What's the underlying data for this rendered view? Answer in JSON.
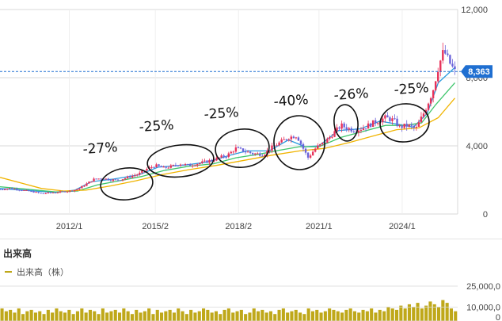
{
  "colors": {
    "up_candle": "#e8325a",
    "down_candle": "#6b63d9",
    "ma_short": "#2a9ce0",
    "ma_mid": "#3ec56b",
    "ma_long": "#f0b400",
    "current_price_bg": "#1f6fd1",
    "current_line": "#1f6fd1",
    "gridline": "#d9d9d9",
    "volume_bar": "#bfa81a",
    "annotation_ink": "#111111"
  },
  "chart_data": [
    {
      "type": "line",
      "name": "price",
      "x_ticks": [
        "2012/1",
        "2015/2",
        "2018/2",
        "2021/1",
        "2024/1"
      ],
      "x_tick_years": [
        2012.0,
        2015.1,
        2018.1,
        2021.0,
        2024.0
      ],
      "xlim": [
        2009.5,
        2026.0
      ],
      "y_ticks": [
        "0",
        "4,000",
        "8,000",
        "12,000"
      ],
      "y_tick_values": [
        0,
        4000,
        8000,
        12000
      ],
      "ylim": [
        0,
        12000
      ],
      "current_price": 8363,
      "current_price_label": "8,363",
      "series": [
        {
          "name": "",
          "style": "candlestick",
          "points": [
            [
              2009.5,
              1450
            ],
            [
              2009.9,
              1520
            ],
            [
              2010.3,
              1400
            ],
            [
              2010.7,
              1300
            ],
            [
              2011.0,
              1200
            ],
            [
              2011.3,
              1250
            ],
            [
              2011.7,
              1300
            ],
            [
              2012.0,
              1350
            ],
            [
              2012.3,
              1450
            ],
            [
              2012.6,
              1750
            ],
            [
              2012.9,
              2050
            ],
            [
              2013.2,
              2100
            ],
            [
              2013.5,
              2000
            ],
            [
              2013.8,
              2000
            ],
            [
              2014.1,
              2150
            ],
            [
              2014.5,
              2350
            ],
            [
              2014.8,
              2650
            ],
            [
              2015.1,
              2850
            ],
            [
              2015.4,
              2700
            ],
            [
              2015.7,
              2800
            ],
            [
              2016.0,
              2950
            ],
            [
              2016.3,
              2850
            ],
            [
              2016.6,
              2950
            ],
            [
              2017.0,
              3100
            ],
            [
              2017.3,
              3250
            ],
            [
              2017.7,
              3450
            ],
            [
              2018.0,
              3850
            ],
            [
              2018.3,
              3700
            ],
            [
              2018.6,
              3550
            ],
            [
              2019.0,
              3500
            ],
            [
              2019.3,
              3900
            ],
            [
              2019.6,
              4200
            ],
            [
              2019.9,
              4500
            ],
            [
              2020.2,
              4600
            ],
            [
              2020.4,
              3950
            ],
            [
              2020.6,
              3300
            ],
            [
              2020.9,
              3900
            ],
            [
              2021.2,
              4200
            ],
            [
              2021.5,
              4700
            ],
            [
              2021.8,
              5200
            ],
            [
              2022.0,
              5050
            ],
            [
              2022.3,
              4900
            ],
            [
              2022.6,
              5050
            ],
            [
              2022.9,
              5300
            ],
            [
              2023.1,
              5450
            ],
            [
              2023.4,
              5650
            ],
            [
              2023.7,
              5500
            ],
            [
              2023.9,
              5100
            ],
            [
              2024.2,
              5200
            ],
            [
              2024.5,
              5000
            ],
            [
              2024.8,
              6000
            ],
            [
              2025.1,
              7200
            ],
            [
              2025.3,
              8600
            ],
            [
              2025.5,
              9600
            ],
            [
              2025.7,
              8900
            ],
            [
              2025.9,
              8363
            ]
          ]
        },
        {
          "name": "",
          "style": "ma-short",
          "points": [
            [
              2009.5,
              1500
            ],
            [
              2010.5,
              1380
            ],
            [
              2011.5,
              1260
            ],
            [
              2012.2,
              1400
            ],
            [
              2012.8,
              1900
            ],
            [
              2013.6,
              2050
            ],
            [
              2014.5,
              2300
            ],
            [
              2015.2,
              2750
            ],
            [
              2016.2,
              2880
            ],
            [
              2017.0,
              3050
            ],
            [
              2017.8,
              3450
            ],
            [
              2018.4,
              3700
            ],
            [
              2019.2,
              3700
            ],
            [
              2019.9,
              4350
            ],
            [
              2020.5,
              3950
            ],
            [
              2021.0,
              4000
            ],
            [
              2021.7,
              4900
            ],
            [
              2022.5,
              5000
            ],
            [
              2023.2,
              5450
            ],
            [
              2023.9,
              5250
            ],
            [
              2024.4,
              5100
            ],
            [
              2024.9,
              5900
            ],
            [
              2025.3,
              7700
            ],
            [
              2025.9,
              8600
            ]
          ]
        },
        {
          "name": "",
          "style": "ma-mid",
          "points": [
            [
              2009.5,
              1600
            ],
            [
              2010.5,
              1450
            ],
            [
              2011.5,
              1300
            ],
            [
              2012.3,
              1350
            ],
            [
              2013.0,
              1700
            ],
            [
              2013.8,
              1950
            ],
            [
              2014.6,
              2200
            ],
            [
              2015.4,
              2550
            ],
            [
              2016.3,
              2800
            ],
            [
              2017.2,
              2950
            ],
            [
              2018.0,
              3300
            ],
            [
              2018.8,
              3500
            ],
            [
              2019.6,
              3750
            ],
            [
              2020.3,
              3950
            ],
            [
              2021.0,
              3950
            ],
            [
              2021.8,
              4500
            ],
            [
              2022.6,
              4850
            ],
            [
              2023.4,
              5200
            ],
            [
              2024.1,
              5200
            ],
            [
              2024.7,
              5350
            ],
            [
              2025.2,
              6400
            ],
            [
              2025.9,
              7700
            ]
          ]
        },
        {
          "name": "",
          "style": "ma-long",
          "points": [
            [
              2009.5,
              2150
            ],
            [
              2010.3,
              1800
            ],
            [
              2011.0,
              1500
            ],
            [
              2011.8,
              1350
            ],
            [
              2012.6,
              1400
            ],
            [
              2013.5,
              1650
            ],
            [
              2014.4,
              1950
            ],
            [
              2015.3,
              2300
            ],
            [
              2016.3,
              2600
            ],
            [
              2017.3,
              2850
            ],
            [
              2018.3,
              3150
            ],
            [
              2019.3,
              3450
            ],
            [
              2020.3,
              3700
            ],
            [
              2021.2,
              3850
            ],
            [
              2022.1,
              4200
            ],
            [
              2023.0,
              4600
            ],
            [
              2023.8,
              4950
            ],
            [
              2024.6,
              5050
            ],
            [
              2025.3,
              5650
            ],
            [
              2025.9,
              6800
            ]
          ]
        }
      ],
      "annotations": [
        "-27%",
        "-25%",
        "-25%",
        "-40%",
        "-26%",
        "-25%"
      ]
    },
    {
      "type": "bar",
      "name": "volume",
      "title": "出来高",
      "legend": "出来高（株）",
      "y_ticks": [
        "25,000,0",
        "10,000,0",
        "0"
      ],
      "values": [
        9,
        7,
        8,
        6,
        9,
        5,
        7,
        8,
        6,
        7,
        5,
        8,
        6,
        9,
        7,
        6,
        8,
        5,
        7,
        9,
        6,
        8,
        7,
        5,
        9,
        6,
        7,
        8,
        6,
        9,
        7,
        5,
        8,
        6,
        7,
        9,
        5,
        8,
        6,
        7,
        8,
        6,
        9,
        7,
        5,
        8,
        6,
        7,
        9,
        8,
        6,
        7,
        5,
        8,
        9,
        6,
        7,
        8,
        5,
        6,
        9,
        7,
        8,
        6,
        7,
        5,
        8,
        9,
        6,
        7,
        8,
        6,
        5,
        9,
        7,
        8,
        6,
        7,
        9,
        8,
        7,
        6,
        8,
        9,
        7,
        6,
        8,
        7,
        9,
        6,
        8,
        7,
        10,
        9,
        8,
        11,
        9,
        12,
        10,
        13,
        9,
        11,
        14,
        12,
        10,
        15,
        13,
        9,
        7
      ]
    }
  ]
}
